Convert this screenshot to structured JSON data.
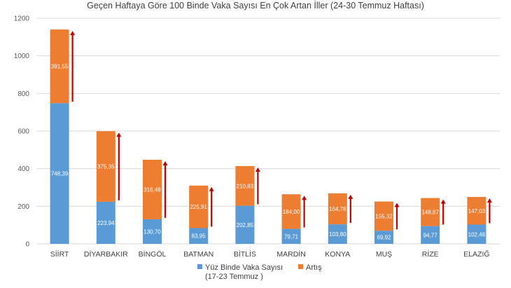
{
  "chart_data": {
    "type": "bar",
    "stacked": true,
    "title": "Geçen Haftaya Göre 100 Binde Vaka Sayısı En Çok Artan İller (24-30 Temmuz Haftası)",
    "categories": [
      "SİİRT",
      "DİYARBAKIR",
      "BİNGÖL",
      "BATMAN",
      "BİTLİS",
      "MARDİN",
      "KONYA",
      "MUŞ",
      "RİZE",
      "ELAZIĞ"
    ],
    "series": [
      {
        "name": "Yüz Binde Vaka Sayısı",
        "name_line2": "(17-23 Temmuz )",
        "color": "#5b9bd5",
        "values": [
          748.39,
          223.94,
          130.7,
          83.95,
          202.85,
          79.71,
          103.8,
          69.92,
          94.77,
          102.48
        ],
        "labels": [
          "748,39",
          "223,94",
          "130,70",
          "83,95",
          "202,85",
          "79,71",
          "103,80",
          "69,92",
          "94,77",
          "102,48"
        ]
      },
      {
        "name": "Artış",
        "color": "#ed7d31",
        "values": [
          391.55,
          375.35,
          316.48,
          225.91,
          210.83,
          184.0,
          164.78,
          155.32,
          148.87,
          147.03
        ],
        "labels": [
          "391,55",
          "375,35",
          "316,48",
          "225,91",
          "210,83",
          "184,00",
          "164,78",
          "155,32",
          "148,87",
          "147,03"
        ]
      }
    ],
    "y_ticks": [
      "0",
      "200",
      "400",
      "600",
      "800",
      "1000",
      "1200"
    ],
    "ylim": [
      0,
      1200
    ],
    "grid": true,
    "legend_position": "bottom",
    "arrow_color": "#c00000"
  }
}
